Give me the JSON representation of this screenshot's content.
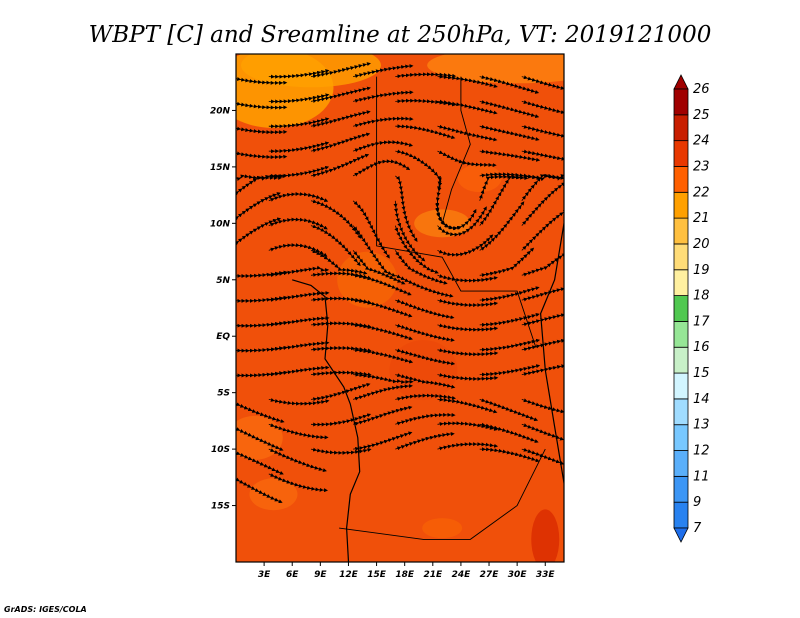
{
  "chart_data": {
    "type": "heatmap",
    "title": "WBPT [C] and Sreamline at 250hPa, VT: 2019121000",
    "variable": "Wet-bulb potential temperature (C) with 250hPa streamlines",
    "x_ticks": [
      "3E",
      "6E",
      "9E",
      "12E",
      "15E",
      "18E",
      "21E",
      "24E",
      "27E",
      "30E",
      "33E"
    ],
    "y_ticks": [
      "20N",
      "15N",
      "10N",
      "5N",
      "EQ",
      "5S",
      "10S",
      "15S"
    ],
    "x_values": [
      3,
      6,
      9,
      12,
      15,
      18,
      21,
      24,
      27,
      30,
      33
    ],
    "y_values": [
      20,
      15,
      10,
      5,
      0,
      -5,
      -10,
      -15
    ],
    "lon_range": [
      0,
      35
    ],
    "lat_range": [
      -20,
      25
    ],
    "colorbar": {
      "labels": [
        "7",
        "9",
        "11",
        "12",
        "13",
        "14",
        "15",
        "16",
        "17",
        "18",
        "19",
        "20",
        "21",
        "22",
        "23",
        "24",
        "25",
        "26"
      ],
      "colors": [
        "#1e6eeb",
        "#2882f0",
        "#3c96f5",
        "#5aaffa",
        "#78c8ff",
        "#a0dcff",
        "#d2f5ff",
        "#c8f0c8",
        "#96e696",
        "#50c850",
        "#fff0a0",
        "#ffdc78",
        "#ffc040",
        "#ffa000",
        "#ff6000",
        "#e83800",
        "#c81e00",
        "#a00000",
        "#a00000"
      ]
    },
    "field": {
      "dominant_range": [
        22,
        24
      ],
      "warm_spots": "isolated 24-25 near 34E 18S",
      "cool_areas": "21-22 over northwest Sahara near 5E 20N and north of 18N",
      "streamline_features": "westerly jet in north, anticyclonic curvature near 22E 12N, easterly/westerly flow in tropics"
    }
  },
  "credit": "GrADS: IGES/COLA"
}
